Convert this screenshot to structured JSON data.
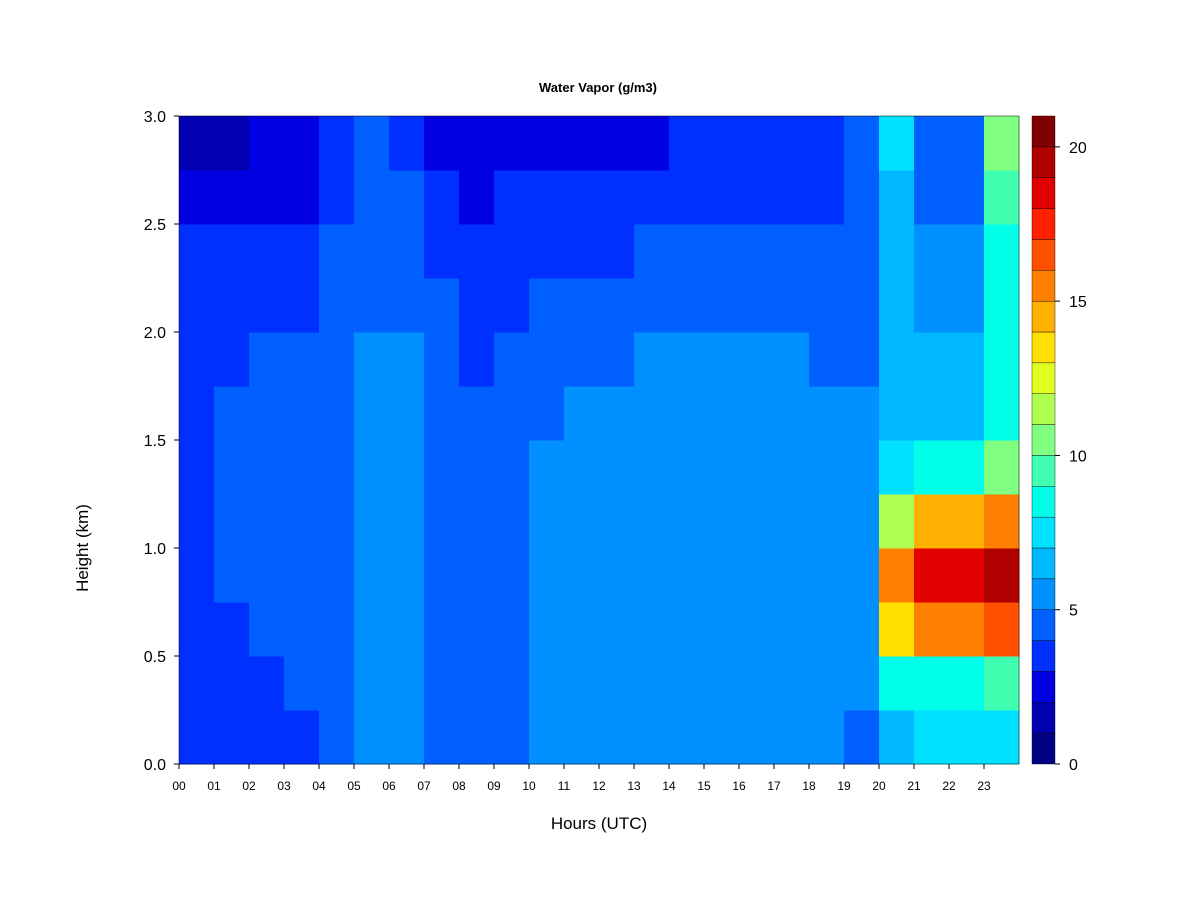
{
  "chart_data": {
    "type": "heatmap",
    "title": "Water Vapor (g/m3)",
    "x_label": "Hours (UTC)",
    "y_label": "Height (km)",
    "xlim": [
      0,
      24
    ],
    "ylim": [
      0,
      3
    ],
    "xticks": [
      {
        "value": 0,
        "label": "00"
      },
      {
        "value": 1,
        "label": "01"
      },
      {
        "value": 2,
        "label": "02"
      },
      {
        "value": 3,
        "label": "03"
      },
      {
        "value": 4,
        "label": "04"
      },
      {
        "value": 5,
        "label": "05"
      },
      {
        "value": 6,
        "label": "06"
      },
      {
        "value": 7,
        "label": "07"
      },
      {
        "value": 8,
        "label": "08"
      },
      {
        "value": 9,
        "label": "09"
      },
      10,
      11,
      12,
      13,
      14,
      15,
      16,
      17,
      18,
      19,
      20,
      21,
      22,
      23
    ],
    "yticks": [
      {
        "value": 0,
        "label": "0.0"
      },
      0.5,
      {
        "value": 1,
        "label": "1.0"
      },
      1.5,
      {
        "value": 2,
        "label": "2.0"
      },
      2.5,
      {
        "value": 3,
        "label": "3.0"
      }
    ],
    "x": [
      0,
      1,
      2,
      3,
      4,
      5,
      6,
      7,
      8,
      9,
      10,
      11,
      12,
      13,
      14,
      15,
      16,
      17,
      18,
      19,
      20,
      21,
      22,
      23
    ],
    "y": [
      0,
      0.25,
      0.5,
      0.75,
      1,
      1.25,
      1.5,
      1.75,
      2,
      2.25,
      2.5,
      2.75
    ],
    "z": [
      [
        3.5,
        3.5,
        3.5,
        3.8,
        4.5,
        5.2,
        5,
        4.5,
        4.2,
        4.5,
        5,
        5.3,
        5.5,
        5.5,
        5.6,
        5.6,
        5.7,
        5.8,
        5,
        4.5,
        6.8,
        7.5,
        7.6,
        7.8
      ],
      [
        3.6,
        3.8,
        3.8,
        4,
        4.8,
        5.3,
        5.2,
        4.6,
        4.3,
        4.7,
        5.5,
        5.6,
        5.6,
        5.5,
        5.6,
        5.5,
        5.4,
        5.4,
        5.1,
        5.2,
        8.2,
        8.8,
        8.8,
        9
      ],
      [
        3.7,
        3.9,
        4,
        4.2,
        4.8,
        5.4,
        5.2,
        4.6,
        4.2,
        4.6,
        5.4,
        5.3,
        5.3,
        5.2,
        5.3,
        5.4,
        5.3,
        5.3,
        5.2,
        5.5,
        13,
        15,
        15.5,
        16
      ],
      [
        3.8,
        4,
        4,
        4.2,
        4.8,
        5.4,
        5.3,
        4.7,
        4.3,
        4.6,
        5.3,
        5.3,
        5.2,
        5.3,
        5.5,
        5.5,
        5.4,
        5.3,
        5.2,
        5.6,
        15,
        18.5,
        18.5,
        19
      ],
      [
        3.9,
        4.1,
        4.1,
        4.3,
        4.7,
        5.3,
        5.3,
        4.8,
        4.3,
        4.6,
        5.2,
        5.3,
        5.4,
        5.5,
        5.6,
        5.5,
        5.4,
        5.3,
        5.2,
        5.4,
        11,
        14,
        14.5,
        15
      ],
      [
        3.9,
        4.1,
        4.2,
        4.3,
        4.7,
        5.3,
        5.3,
        4.6,
        4.2,
        4.5,
        5,
        5.2,
        5.4,
        5.5,
        5.6,
        5.5,
        5.4,
        5.3,
        5.1,
        5.2,
        7.5,
        8.5,
        8.5,
        10
      ],
      [
        3.9,
        4,
        4.1,
        4.2,
        4.6,
        5.2,
        5.2,
        4.4,
        4,
        4.3,
        4.8,
        5,
        5.2,
        5.4,
        5.5,
        5.4,
        5.3,
        5.2,
        5,
        5,
        6.5,
        6.5,
        6.5,
        8.5
      ],
      [
        3.8,
        3.9,
        4,
        4.1,
        4.5,
        5.1,
        5.1,
        4.2,
        3.6,
        4,
        4.5,
        4.7,
        4.8,
        5,
        5,
        5,
        5,
        5,
        4.8,
        4.8,
        6,
        6,
        6,
        8
      ],
      [
        3.5,
        3.6,
        3.8,
        3.9,
        4.3,
        4.9,
        4.9,
        4,
        3.3,
        3.6,
        4,
        4.2,
        4.3,
        4.4,
        4.4,
        4.4,
        4.4,
        4.5,
        4.5,
        4.7,
        6.5,
        5.5,
        5.5,
        8
      ],
      [
        3.2,
        3.3,
        3.4,
        3.5,
        4.1,
        4.7,
        4.6,
        3.5,
        3,
        3.3,
        3.6,
        3.8,
        3.9,
        4,
        4,
        4,
        4,
        4.1,
        4.2,
        4.5,
        6.5,
        5,
        5,
        8.5
      ],
      [
        2.2,
        2.4,
        2.8,
        2.8,
        3.6,
        4.3,
        4.2,
        3.2,
        2.6,
        3,
        3.2,
        3.4,
        3.4,
        3.4,
        3.5,
        3.5,
        3.6,
        3.6,
        3.8,
        4.2,
        6.8,
        4.6,
        4.5,
        9
      ],
      [
        1.8,
        1.9,
        2.2,
        2.3,
        3.2,
        4,
        3.6,
        2.8,
        2.2,
        2.4,
        2.8,
        2.8,
        2.8,
        2.9,
        3,
        3,
        3,
        3.2,
        3.5,
        4,
        7,
        4.2,
        4,
        10
      ]
    ],
    "levels": [
      0,
      1,
      2,
      3,
      4,
      5,
      6,
      7,
      8,
      9,
      10,
      11,
      12,
      13,
      14,
      15,
      16,
      17,
      18,
      19,
      20,
      21
    ],
    "colors": [
      "#000080",
      "#0000b0",
      "#0000e0",
      "#0030ff",
      "#0060ff",
      "#0090ff",
      "#00b8ff",
      "#00e0ff",
      "#00ffe8",
      "#40ffb0",
      "#80ff80",
      "#b0ff50",
      "#e0ff20",
      "#ffe000",
      "#ffb000",
      "#ff8000",
      "#ff5000",
      "#ff2000",
      "#e00000",
      "#b00000",
      "#7f0000"
    ],
    "colorbar_ticks": [
      0,
      5,
      10,
      15,
      20
    ]
  }
}
